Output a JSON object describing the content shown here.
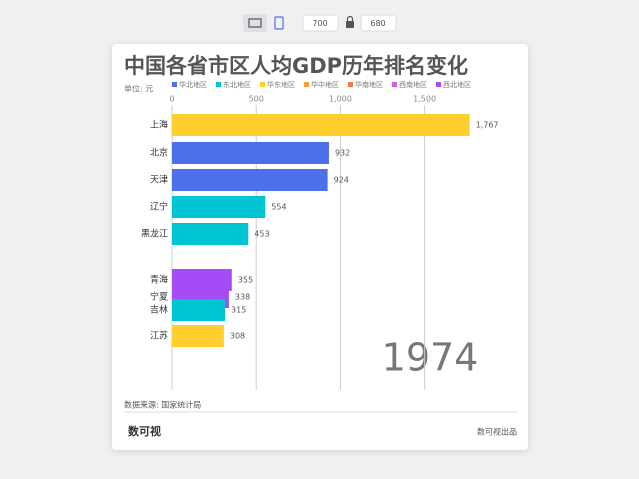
{
  "toolbar": {
    "width": "700",
    "height": "680"
  },
  "chart_data": {
    "type": "bar",
    "orientation": "horizontal",
    "title": "中国各省市区人均GDP历年排名变化",
    "unit_label": "单位: 元",
    "legend": [
      {
        "name": "华北地区",
        "color": "#4b70ea"
      },
      {
        "name": "东北地区",
        "color": "#00c4d2"
      },
      {
        "name": "华东地区",
        "color": "#ffcf2d"
      },
      {
        "name": "华中地区",
        "color": "#f0a23c"
      },
      {
        "name": "华南地区",
        "color": "#f07a4a"
      },
      {
        "name": "西南地区",
        "color": "#d65ed8"
      },
      {
        "name": "西北地区",
        "color": "#a44cf5"
      }
    ],
    "categories": [
      "上海",
      "北京",
      "天津",
      "辽宁",
      "黑龙江",
      "青海",
      "宁夏",
      "吉林",
      "江苏"
    ],
    "values": [
      1767,
      932,
      924,
      554,
      453,
      355,
      338,
      315,
      308
    ],
    "value_labels": [
      "1,767",
      "932",
      "924",
      "554",
      "453",
      "355",
      "338",
      "315",
      "308"
    ],
    "colors": [
      "#ffcf2d",
      "#4b70ea",
      "#4b70ea",
      "#00c4d2",
      "#00c4d2",
      "#a44cf5",
      "#a44cf5",
      "#00c4d2",
      "#ffcf2d"
    ],
    "xlim": [
      0,
      1900
    ],
    "xticks": [
      0,
      500,
      {
        "value": 1000,
        "label": "1,000"
      },
      {
        "value": 1500,
        "label": "1,500"
      }
    ],
    "grid": true,
    "year": "1974",
    "source": "数据来源: 国家统计局",
    "logo": "数可视",
    "footer": "数可视出品"
  }
}
